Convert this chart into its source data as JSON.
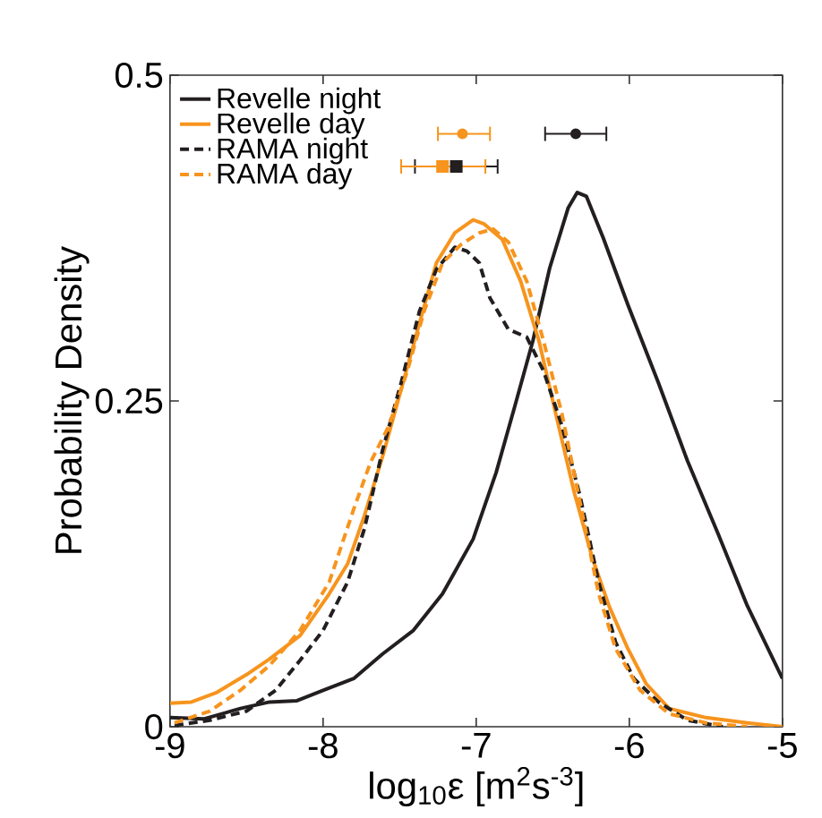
{
  "chart_data": {
    "type": "line",
    "xlabel": "log$_{10}$ε [m$^{2}$s$^{-3}$]",
    "ylabel": "Probability Density",
    "xlim": [
      -9,
      -5
    ],
    "xticks": [
      -9,
      -8,
      -7,
      -6,
      -5
    ],
    "ylim": [
      0,
      0.5
    ],
    "yticks": [
      0,
      0.25,
      0.5
    ],
    "legend": "top left",
    "series": [
      {
        "name": "Revelle night",
        "color": "#231f20",
        "line_style": "solid",
        "x": [
          -9,
          -8.78,
          -8.54,
          -8.35,
          -8.17,
          -8.0,
          -7.8,
          -7.61,
          -7.41,
          -7.22,
          -7.02,
          -6.87,
          -6.75,
          -6.63,
          -6.52,
          -6.4,
          -6.34,
          -6.28,
          -6.17,
          -6.01,
          -5.81,
          -5.62,
          -5.42,
          -5.23,
          -5.0
        ],
        "values": [
          0.007,
          0.006,
          0.014,
          0.019,
          0.02,
          0.028,
          0.037,
          0.056,
          0.074,
          0.102,
          0.144,
          0.195,
          0.245,
          0.296,
          0.352,
          0.398,
          0.41,
          0.407,
          0.375,
          0.324,
          0.264,
          0.204,
          0.148,
          0.093,
          0.037
        ]
      },
      {
        "name": "Revelle day",
        "color": "#f7941d",
        "line_style": "solid",
        "x": [
          -9,
          -8.86,
          -8.7,
          -8.5,
          -8.35,
          -8.15,
          -7.96,
          -7.84,
          -7.73,
          -7.61,
          -7.49,
          -7.37,
          -7.26,
          -7.14,
          -7.02,
          -6.95,
          -6.83,
          -6.71,
          -6.59,
          -6.48,
          -6.36,
          -6.24,
          -6.13,
          -6.01,
          -5.89,
          -5.74,
          -5.5,
          -5.23,
          -5.0
        ],
        "values": [
          0.018,
          0.019,
          0.026,
          0.04,
          0.052,
          0.07,
          0.102,
          0.125,
          0.162,
          0.208,
          0.259,
          0.31,
          0.356,
          0.379,
          0.389,
          0.386,
          0.374,
          0.342,
          0.296,
          0.24,
          0.18,
          0.129,
          0.092,
          0.06,
          0.033,
          0.014,
          0.007,
          0.003,
          0
        ]
      },
      {
        "name": "RAMA night",
        "color": "#231f20",
        "line_style": "dashed",
        "x": [
          -8.97,
          -8.74,
          -8.5,
          -8.31,
          -8.15,
          -8.0,
          -7.84,
          -7.73,
          -7.61,
          -7.49,
          -7.37,
          -7.26,
          -7.14,
          -7.06,
          -6.98,
          -6.91,
          -6.79,
          -6.67,
          -6.56,
          -6.44,
          -6.32,
          -6.2,
          -6.09,
          -5.97,
          -5.81,
          -5.62,
          -5.39
        ],
        "values": [
          0.001,
          0.005,
          0.012,
          0.028,
          0.051,
          0.074,
          0.111,
          0.152,
          0.213,
          0.264,
          0.319,
          0.351,
          0.368,
          0.365,
          0.356,
          0.329,
          0.305,
          0.299,
          0.273,
          0.231,
          0.176,
          0.111,
          0.065,
          0.037,
          0.019,
          0.005,
          0
        ]
      },
      {
        "name": "RAMA day",
        "color": "#f7941d",
        "line_style": "dashed",
        "x": [
          -8.97,
          -8.74,
          -8.54,
          -8.35,
          -8.15,
          -7.96,
          -7.8,
          -7.69,
          -7.57,
          -7.45,
          -7.34,
          -7.22,
          -7.1,
          -6.98,
          -6.89,
          -6.79,
          -6.67,
          -6.56,
          -6.44,
          -6.32,
          -6.2,
          -6.09,
          -5.93,
          -5.74,
          -5.5,
          -5.23
        ],
        "values": [
          0.003,
          0.012,
          0.028,
          0.047,
          0.074,
          0.111,
          0.167,
          0.203,
          0.231,
          0.273,
          0.319,
          0.356,
          0.37,
          0.379,
          0.382,
          0.372,
          0.342,
          0.296,
          0.24,
          0.171,
          0.102,
          0.06,
          0.028,
          0.01,
          0.003,
          0
        ]
      },
      {
        "type": "scatter",
        "color": "#231f20",
        "marker": "circle",
        "x": [
          -6.35
        ],
        "values": [
          0.455
        ],
        "xerrors": [
          [
            -6.55,
            -6.15
          ]
        ]
      },
      {
        "type": "scatter",
        "color": "#f7941d",
        "marker": "circle",
        "x": [
          -7.09
        ],
        "values": [
          0.455
        ],
        "xerrors": [
          [
            -7.25,
            -6.91
          ]
        ]
      },
      {
        "type": "scatter",
        "color": "#231f20",
        "marker": "square",
        "x": [
          -7.13
        ],
        "values": [
          0.43
        ],
        "xerrors": [
          [
            -7.4,
            -6.86
          ]
        ]
      },
      {
        "type": "scatter",
        "color": "#f7941d",
        "marker": "square",
        "x": [
          -7.22
        ],
        "values": [
          0.43
        ],
        "xerrors": [
          [
            -7.49,
            -6.94
          ]
        ]
      }
    ]
  }
}
